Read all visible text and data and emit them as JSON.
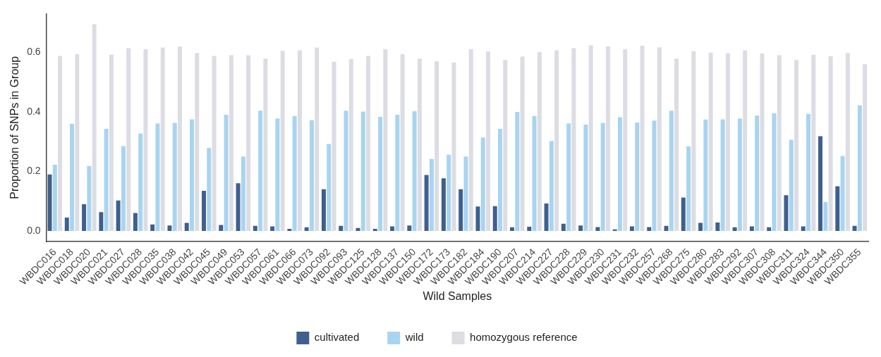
{
  "chart_data": {
    "type": "bar",
    "xlabel": "Wild Samples",
    "ylabel": "Proportion of SNPs in Group",
    "categories": [
      "WBDC016",
      "WBDC018",
      "WBDC020",
      "WBDC021",
      "WBDC027",
      "WBDC028",
      "WBDC035",
      "WBDC038",
      "WBDC042",
      "WBDC045",
      "WBDC049",
      "WBDC053",
      "WBDC057",
      "WBDC061",
      "WBDC066",
      "WBDC073",
      "WBDC092",
      "WBDC093",
      "WBDC125",
      "WBDC128",
      "WBDC137",
      "WBDC150",
      "WBDC172",
      "WBDC173",
      "WBDC182",
      "WBDC184",
      "WBDC190",
      "WBDC207",
      "WBDC214",
      "WBDC227",
      "WBDC228",
      "WBDC229",
      "WBDC230",
      "WBDC231",
      "WBDC232",
      "WBDC257",
      "WBDC268",
      "WBDC275",
      "WBDC280",
      "WBDC283",
      "WBDC292",
      "WBDC307",
      "WBDC308",
      "WBDC311",
      "WBDC324",
      "WBDC344",
      "WBDC350",
      "WBDC355"
    ],
    "series": [
      {
        "name": "cultivated",
        "color": "#3f5f8f",
        "values": [
          0.19,
          0.045,
          0.09,
          0.063,
          0.102,
          0.06,
          0.022,
          0.018,
          0.027,
          0.135,
          0.02,
          0.16,
          0.017,
          0.015,
          0.007,
          0.012,
          0.14,
          0.017,
          0.01,
          0.007,
          0.015,
          0.018,
          0.188,
          0.177,
          0.14,
          0.082,
          0.083,
          0.012,
          0.014,
          0.092,
          0.024,
          0.018,
          0.013,
          0.005,
          0.015,
          0.013,
          0.017,
          0.112,
          0.027,
          0.028,
          0.012,
          0.015,
          0.012,
          0.12,
          0.015,
          0.318,
          0.15,
          0.017
        ]
      },
      {
        "name": "wild",
        "color": "#a8d4f0",
        "values": [
          0.222,
          0.36,
          0.218,
          0.343,
          0.285,
          0.327,
          0.361,
          0.363,
          0.375,
          0.279,
          0.39,
          0.25,
          0.404,
          0.378,
          0.386,
          0.372,
          0.292,
          0.404,
          0.401,
          0.383,
          0.39,
          0.402,
          0.242,
          0.256,
          0.25,
          0.314,
          0.343,
          0.4,
          0.386,
          0.302,
          0.361,
          0.357,
          0.363,
          0.382,
          0.364,
          0.371,
          0.404,
          0.284,
          0.374,
          0.375,
          0.378,
          0.388,
          0.395,
          0.306,
          0.393,
          0.097,
          0.252,
          0.422
        ]
      },
      {
        "name": "homozygous reference",
        "color": "#dcdce3",
        "values": [
          0.588,
          0.594,
          0.694,
          0.592,
          0.614,
          0.611,
          0.616,
          0.619,
          0.598,
          0.588,
          0.591,
          0.59,
          0.579,
          0.605,
          0.607,
          0.616,
          0.568,
          0.578,
          0.588,
          0.611,
          0.594,
          0.579,
          0.57,
          0.566,
          0.611,
          0.603,
          0.574,
          0.586,
          0.601,
          0.607,
          0.614,
          0.624,
          0.62,
          0.611,
          0.622,
          0.617,
          0.579,
          0.604,
          0.599,
          0.597,
          0.607,
          0.596,
          0.591,
          0.574,
          0.592,
          0.587,
          0.598,
          0.56
        ]
      }
    ],
    "ylim": [
      -0.036,
      0.73
    ],
    "yticks": [
      {
        "value": 0,
        "label": "0.0"
      },
      {
        "value": 0.2,
        "label": "0.2"
      },
      {
        "value": 0.4,
        "label": "0.4"
      },
      {
        "value": 0.6,
        "label": "0.6"
      }
    ],
    "grid": false,
    "legend": "bottom"
  }
}
